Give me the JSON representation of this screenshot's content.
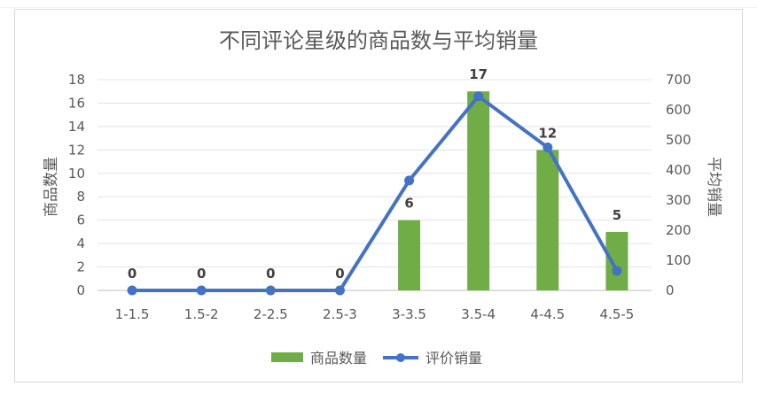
{
  "chart_data": {
    "type": "bar+line",
    "title": "不同评论星级的商品数与平均销量",
    "ylabel_left": "商品数量",
    "ylabel_right": "平均销量",
    "categories": [
      "1-1.5",
      "1.5-2",
      "2-2.5",
      "2.5-3",
      "3-3.5",
      "3.5-4",
      "4-4.5",
      "4.5-5"
    ],
    "series": [
      {
        "name": "商品数量",
        "type": "bar",
        "axis": "left",
        "values": [
          0,
          0,
          0,
          0,
          6,
          17,
          12,
          5
        ],
        "color": "#70ad47"
      },
      {
        "name": "评价销量",
        "type": "line",
        "axis": "right",
        "values": [
          0,
          0,
          0,
          0,
          365,
          645,
          475,
          65
        ],
        "color": "#4472c4"
      }
    ],
    "ylim_left": [
      0,
      18
    ],
    "ylim_right": [
      0,
      700
    ],
    "yticks_left": [
      "0",
      "2",
      "4",
      "6",
      "8",
      "10",
      "12",
      "14",
      "16",
      "18"
    ],
    "yticks_right": [
      "0",
      "100",
      "200",
      "300",
      "400",
      "500",
      "600",
      "700"
    ],
    "grid": true,
    "legend_position": "bottom"
  }
}
